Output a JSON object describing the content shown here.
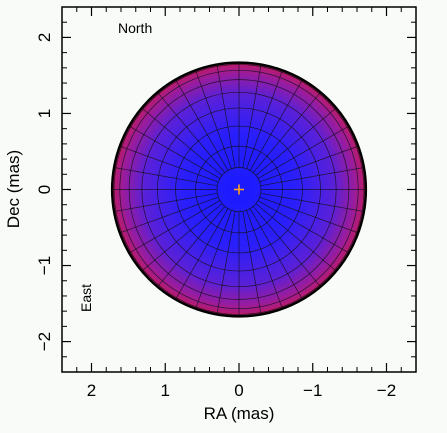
{
  "chart_data": {
    "type": "scatter",
    "title": "",
    "xlabel": "RA (mas)",
    "ylabel": "Dec (mas)",
    "xlim": [
      2.4,
      -2.4
    ],
    "ylim": [
      -2.4,
      2.4
    ],
    "x_ticks": [
      2,
      1,
      0,
      -1,
      -2
    ],
    "x_tick_labels": [
      "2",
      "1",
      "0",
      "−1",
      "−2"
    ],
    "y_ticks": [
      -2,
      -1,
      0,
      1,
      2
    ],
    "y_tick_labels": [
      "−2",
      "−1",
      "0",
      "1",
      "2"
    ],
    "annotations": {
      "north": "North",
      "east": "East"
    },
    "disk": {
      "center": [
        0,
        0
      ],
      "radius": 1.72,
      "center_color": "#1a1aff",
      "limb_color": "#c01a60",
      "grid_line_color": "#101018",
      "outline_color": "#000000"
    },
    "marker": {
      "x": 0,
      "y": 0,
      "color": "#ffa020"
    },
    "grid": true
  }
}
